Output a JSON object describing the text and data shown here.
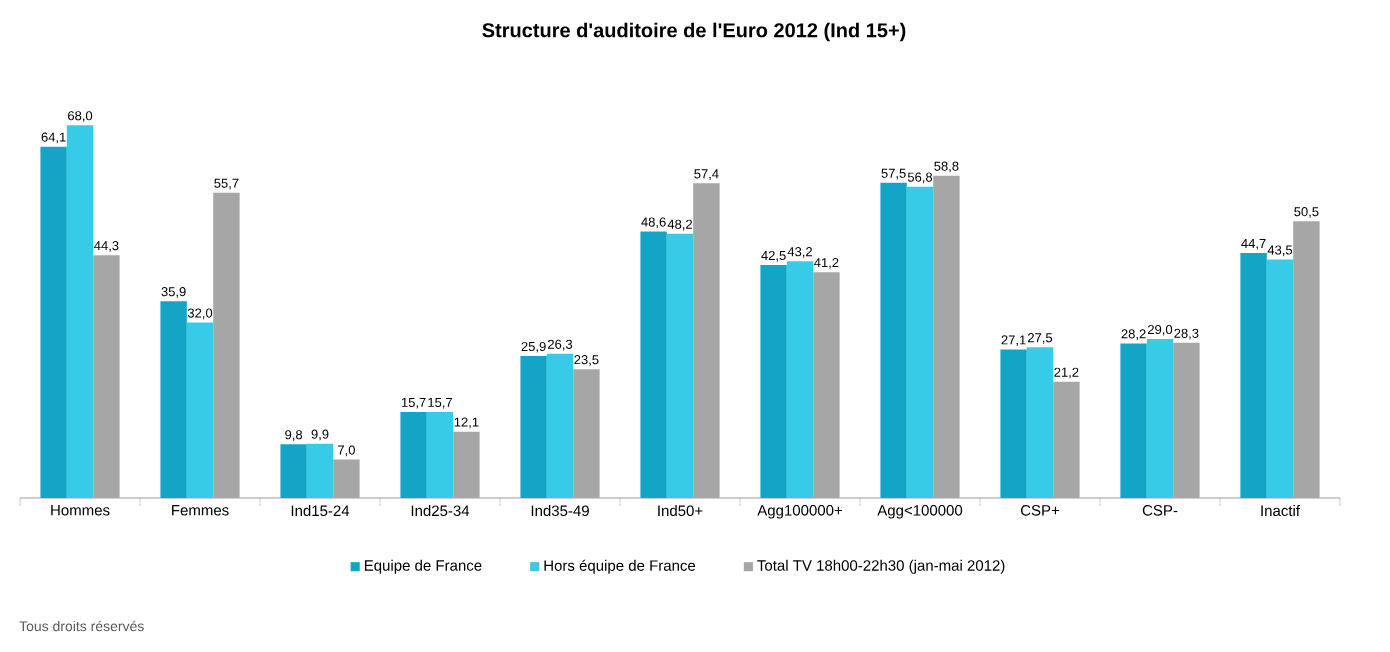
{
  "chart_data": {
    "type": "bar",
    "title": "Structure d'auditoire de l'Euro 2012 (Ind 15+)",
    "categories": [
      "Hommes",
      "Femmes",
      "Ind15-24",
      "Ind25-34",
      "Ind35-49",
      "Ind50+",
      "Agg100000+",
      "Agg<100000",
      "CSP+",
      "CSP-",
      "Inactif"
    ],
    "series": [
      {
        "name": "Equipe de France",
        "color": "#14a5c6",
        "values": [
          64.1,
          35.9,
          9.8,
          15.7,
          25.9,
          48.6,
          42.5,
          57.5,
          27.1,
          28.2,
          44.7
        ],
        "value_labels": [
          "64,1",
          "35,9",
          "9,8",
          "15,7",
          "25,9",
          "48,6",
          "42,5",
          "57,5",
          "27,1",
          "28,2",
          "44,7"
        ]
      },
      {
        "name": "Hors équipe de France",
        "color": "#38cbe8",
        "values": [
          68.0,
          32.0,
          9.9,
          15.7,
          26.3,
          48.2,
          43.2,
          56.8,
          27.5,
          29.0,
          43.5
        ],
        "value_labels": [
          "68,0",
          "32,0",
          "9,9",
          "15,7",
          "26,3",
          "48,2",
          "43,2",
          "56,8",
          "27,5",
          "29,0",
          "43,5"
        ]
      },
      {
        "name": "Total TV 18h00-22h30 (jan-mai 2012)",
        "color": "#a6a6a6",
        "values": [
          44.3,
          55.7,
          7.0,
          12.1,
          23.5,
          57.4,
          41.2,
          58.8,
          21.2,
          28.3,
          50.5
        ],
        "value_labels": [
          "44,3",
          "55,7",
          "7,0",
          "12,1",
          "23,5",
          "57,4",
          "41,2",
          "58,8",
          "21,2",
          "28,3",
          "50,5"
        ]
      }
    ],
    "annotations": [
      "Tous droits réservés"
    ],
    "legend": "bottom",
    "grid": false,
    "tick_labels": "x"
  }
}
